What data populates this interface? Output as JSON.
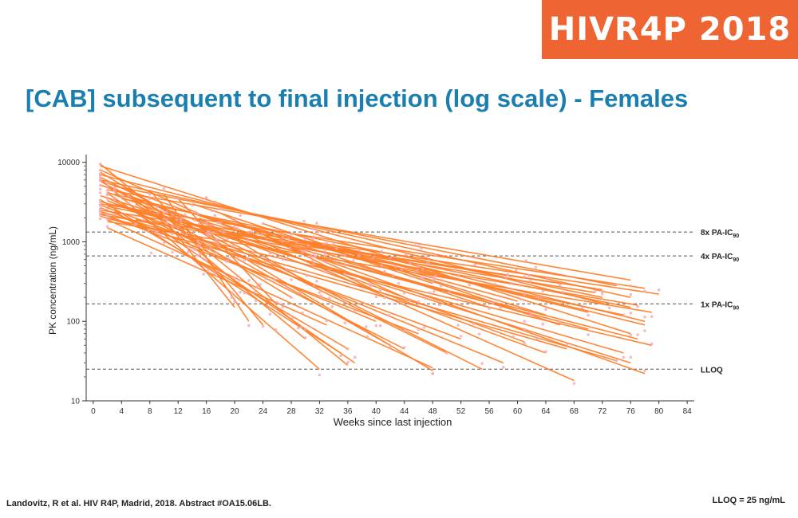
{
  "header": {
    "badge": "HIVR4P 2018",
    "title": "[CAB] subsequent to final injection (log scale) - Females"
  },
  "footer": {
    "citation": "Landovitz, R et al. HIV R4P, Madrid, 2018. Abstract #OA15.06LB.",
    "lloq_note": "LLOQ = 25 ng/mL"
  },
  "colors": {
    "title": "#1a7fb0",
    "badge": "#ee6432",
    "line": "#ff7f2a",
    "point": "#f7a8b0",
    "reference": "#555555"
  },
  "chart_data": {
    "type": "line",
    "title": "",
    "xlabel": "Weeks since last injection",
    "ylabel": "PK concentration (ng/mL)",
    "x_ticks": [
      0,
      4,
      8,
      12,
      16,
      20,
      24,
      28,
      32,
      36,
      40,
      44,
      48,
      52,
      56,
      60,
      64,
      68,
      72,
      76,
      80,
      84
    ],
    "y_ticks": [
      10,
      100,
      1000,
      10000
    ],
    "xlim": [
      -1,
      85
    ],
    "ylim": [
      10,
      12500
    ],
    "y_scale": "log",
    "grid": false,
    "reference_lines": [
      {
        "label": "8x PA-IC",
        "sub": "90",
        "y": 1330
      },
      {
        "label": "4x PA-IC",
        "sub": "90",
        "y": 665
      },
      {
        "label": "1x PA-IC",
        "sub": "90",
        "y": 166
      },
      {
        "label": "LLOQ",
        "sub": "",
        "y": 25
      }
    ],
    "series": [
      {
        "x": [
          1,
          78
        ],
        "y": [
          3000,
          260
        ]
      },
      {
        "x": [
          2,
          76
        ],
        "y": [
          4500,
          330
        ]
      },
      {
        "x": [
          1,
          80
        ],
        "y": [
          2500,
          220
        ]
      },
      {
        "x": [
          3,
          74
        ],
        "y": [
          5000,
          280
        ]
      },
      {
        "x": [
          1,
          77
        ],
        "y": [
          2200,
          160
        ]
      },
      {
        "x": [
          2,
          79
        ],
        "y": [
          1800,
          130
        ]
      },
      {
        "x": [
          4,
          72
        ],
        "y": [
          3500,
          200
        ]
      },
      {
        "x": [
          1,
          76
        ],
        "y": [
          6000,
          200
        ]
      },
      {
        "x": [
          2,
          75
        ],
        "y": [
          2800,
          120
        ]
      },
      {
        "x": [
          1,
          73
        ],
        "y": [
          7000,
          160
        ]
      },
      {
        "x": [
          3,
          78
        ],
        "y": [
          4000,
          90
        ]
      },
      {
        "x": [
          1,
          77
        ],
        "y": [
          3200,
          60
        ]
      },
      {
        "x": [
          2,
          79
        ],
        "y": [
          2000,
          50
        ]
      },
      {
        "x": [
          1,
          76
        ],
        "y": [
          9000,
          70
        ]
      },
      {
        "x": [
          5,
          75
        ],
        "y": [
          2600,
          40
        ]
      },
      {
        "x": [
          1,
          76
        ],
        "y": [
          3800,
          30
        ]
      },
      {
        "x": [
          2,
          78
        ],
        "y": [
          5500,
          22
        ]
      },
      {
        "x": [
          1,
          74
        ],
        "y": [
          2400,
          32
        ]
      },
      {
        "x": [
          1,
          68
        ],
        "y": [
          8000,
          18
        ]
      },
      {
        "x": [
          3,
          70
        ],
        "y": [
          3000,
          80
        ]
      },
      {
        "x": [
          1,
          67
        ],
        "y": [
          2100,
          45
        ]
      },
      {
        "x": [
          2,
          64
        ],
        "y": [
          4200,
          40
        ]
      },
      {
        "x": [
          1,
          61
        ],
        "y": [
          5200,
          55
        ]
      },
      {
        "x": [
          2,
          58
        ],
        "y": [
          3300,
          30
        ]
      },
      {
        "x": [
          1,
          55
        ],
        "y": [
          6500,
          25
        ]
      },
      {
        "x": [
          1,
          52
        ],
        "y": [
          2900,
          60
        ]
      },
      {
        "x": [
          3,
          50
        ],
        "y": [
          4700,
          40
        ]
      },
      {
        "x": [
          1,
          48
        ],
        "y": [
          7500,
          24
        ]
      },
      {
        "x": [
          2,
          48
        ],
        "y": [
          1900,
          26
        ]
      },
      {
        "x": [
          1,
          46
        ],
        "y": [
          2300,
          70
        ]
      },
      {
        "x": [
          2,
          44
        ],
        "y": [
          3600,
          45
        ]
      },
      {
        "x": [
          1,
          42
        ],
        "y": [
          5800,
          50
        ]
      },
      {
        "x": [
          1,
          40
        ],
        "y": [
          2700,
          100
        ]
      },
      {
        "x": [
          2,
          37
        ],
        "y": [
          4100,
          30
        ]
      },
      {
        "x": [
          1,
          36
        ],
        "y": [
          9500,
          28
        ]
      },
      {
        "x": [
          3,
          36
        ],
        "y": [
          2400,
          45
        ]
      },
      {
        "x": [
          1,
          35
        ],
        "y": [
          3400,
          40
        ]
      },
      {
        "x": [
          1,
          32
        ],
        "y": [
          6200,
          25
        ]
      },
      {
        "x": [
          2,
          33
        ],
        "y": [
          1500,
          90
        ]
      },
      {
        "x": [
          5,
          30
        ],
        "y": [
          4000,
          60
        ]
      },
      {
        "x": [
          8,
          24
        ],
        "y": [
          4500,
          90
        ]
      },
      {
        "x": [
          10,
          22
        ],
        "y": [
          4000,
          100
        ]
      },
      {
        "x": [
          9,
          20
        ],
        "y": [
          2500,
          150
        ]
      },
      {
        "x": [
          12,
          26
        ],
        "y": [
          3500,
          160
        ]
      },
      {
        "x": [
          6,
          28
        ],
        "y": [
          3000,
          200
        ]
      },
      {
        "x": [
          15,
          32
        ],
        "y": [
          2000,
          250
        ]
      },
      {
        "x": [
          18,
          40
        ],
        "y": [
          2300,
          240
        ]
      },
      {
        "x": [
          20,
          44
        ],
        "y": [
          1800,
          200
        ]
      },
      {
        "x": [
          14,
          48
        ],
        "y": [
          3000,
          300
        ]
      },
      {
        "x": [
          22,
          56
        ],
        "y": [
          1500,
          150
        ]
      },
      {
        "x": [
          26,
          60
        ],
        "y": [
          1200,
          180
        ]
      },
      {
        "x": [
          30,
          64
        ],
        "y": [
          1000,
          120
        ]
      },
      {
        "x": [
          24,
          66
        ],
        "y": [
          1700,
          90
        ]
      },
      {
        "x": [
          10,
          62
        ],
        "y": [
          2500,
          120
        ]
      },
      {
        "x": [
          16,
          70
        ],
        "y": [
          2000,
          130
        ]
      },
      {
        "x": [
          28,
          76
        ],
        "y": [
          1100,
          150
        ]
      },
      {
        "x": [
          34,
          78
        ],
        "y": [
          900,
          100
        ]
      },
      {
        "x": [
          12,
          71
        ],
        "y": [
          1600,
          230
        ]
      },
      {
        "x": [
          6,
          66
        ],
        "y": [
          1900,
          300
        ]
      },
      {
        "x": [
          20,
          72
        ],
        "y": [
          1300,
          250
        ]
      }
    ]
  }
}
